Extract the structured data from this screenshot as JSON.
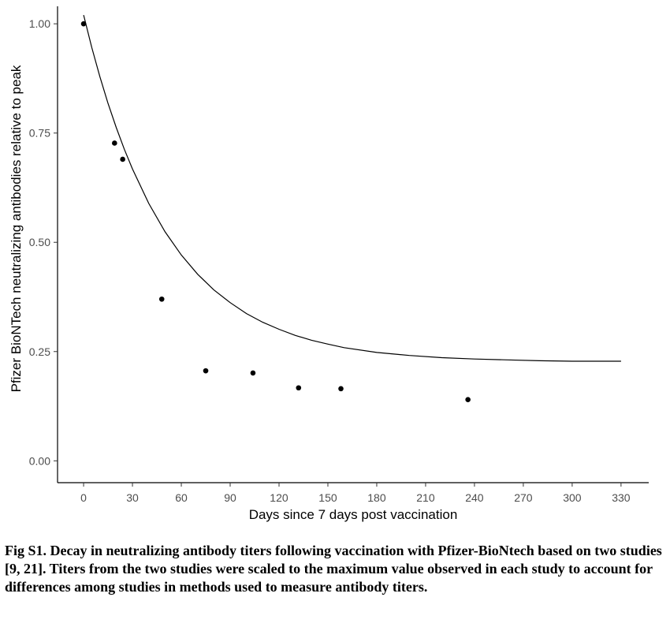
{
  "chart_data": {
    "type": "scatter",
    "xlabel": "Days since 7 days post vaccination",
    "ylabel": "Pfizer BioNTech neutralizing antibodies relative to peak",
    "xlim": [
      -16,
      347
    ],
    "ylim": [
      -0.05,
      1.04
    ],
    "xticks": [
      "0",
      "30",
      "60",
      "90",
      "120",
      "150",
      "180",
      "210",
      "240",
      "270",
      "300",
      "330"
    ],
    "yticks": [
      "0.00",
      "0.25",
      "0.50",
      "0.75",
      "1.00"
    ],
    "grid": false,
    "legend": "none",
    "series": [
      {
        "type": "scatter",
        "x": [
          0,
          19,
          24,
          48,
          75,
          104,
          132,
          158,
          236
        ],
        "y": [
          1.0,
          0.727,
          0.69,
          0.37,
          0.206,
          0.201,
          0.167,
          0.165,
          0.14
        ]
      },
      {
        "type": "line",
        "x": [
          0,
          5,
          10,
          15,
          20,
          25,
          30,
          40,
          50,
          60,
          70,
          80,
          90,
          100,
          110,
          120,
          130,
          140,
          150,
          160,
          180,
          200,
          220,
          240,
          260,
          280,
          300,
          330
        ],
        "y": [
          1.02,
          0.946,
          0.879,
          0.818,
          0.763,
          0.713,
          0.668,
          0.589,
          0.524,
          0.471,
          0.427,
          0.391,
          0.362,
          0.337,
          0.317,
          0.301,
          0.287,
          0.276,
          0.267,
          0.259,
          0.248,
          0.241,
          0.236,
          0.233,
          0.231,
          0.229,
          0.228,
          0.228
        ]
      }
    ]
  },
  "caption": "Fig S1. Decay in neutralizing antibody titers following vaccination with Pfizer-BioNtech based on two studies [9, 21]. Titers from the two studies were scaled to the maximum value observed in each study to account for differences among studies in methods used to measure antibody titers."
}
